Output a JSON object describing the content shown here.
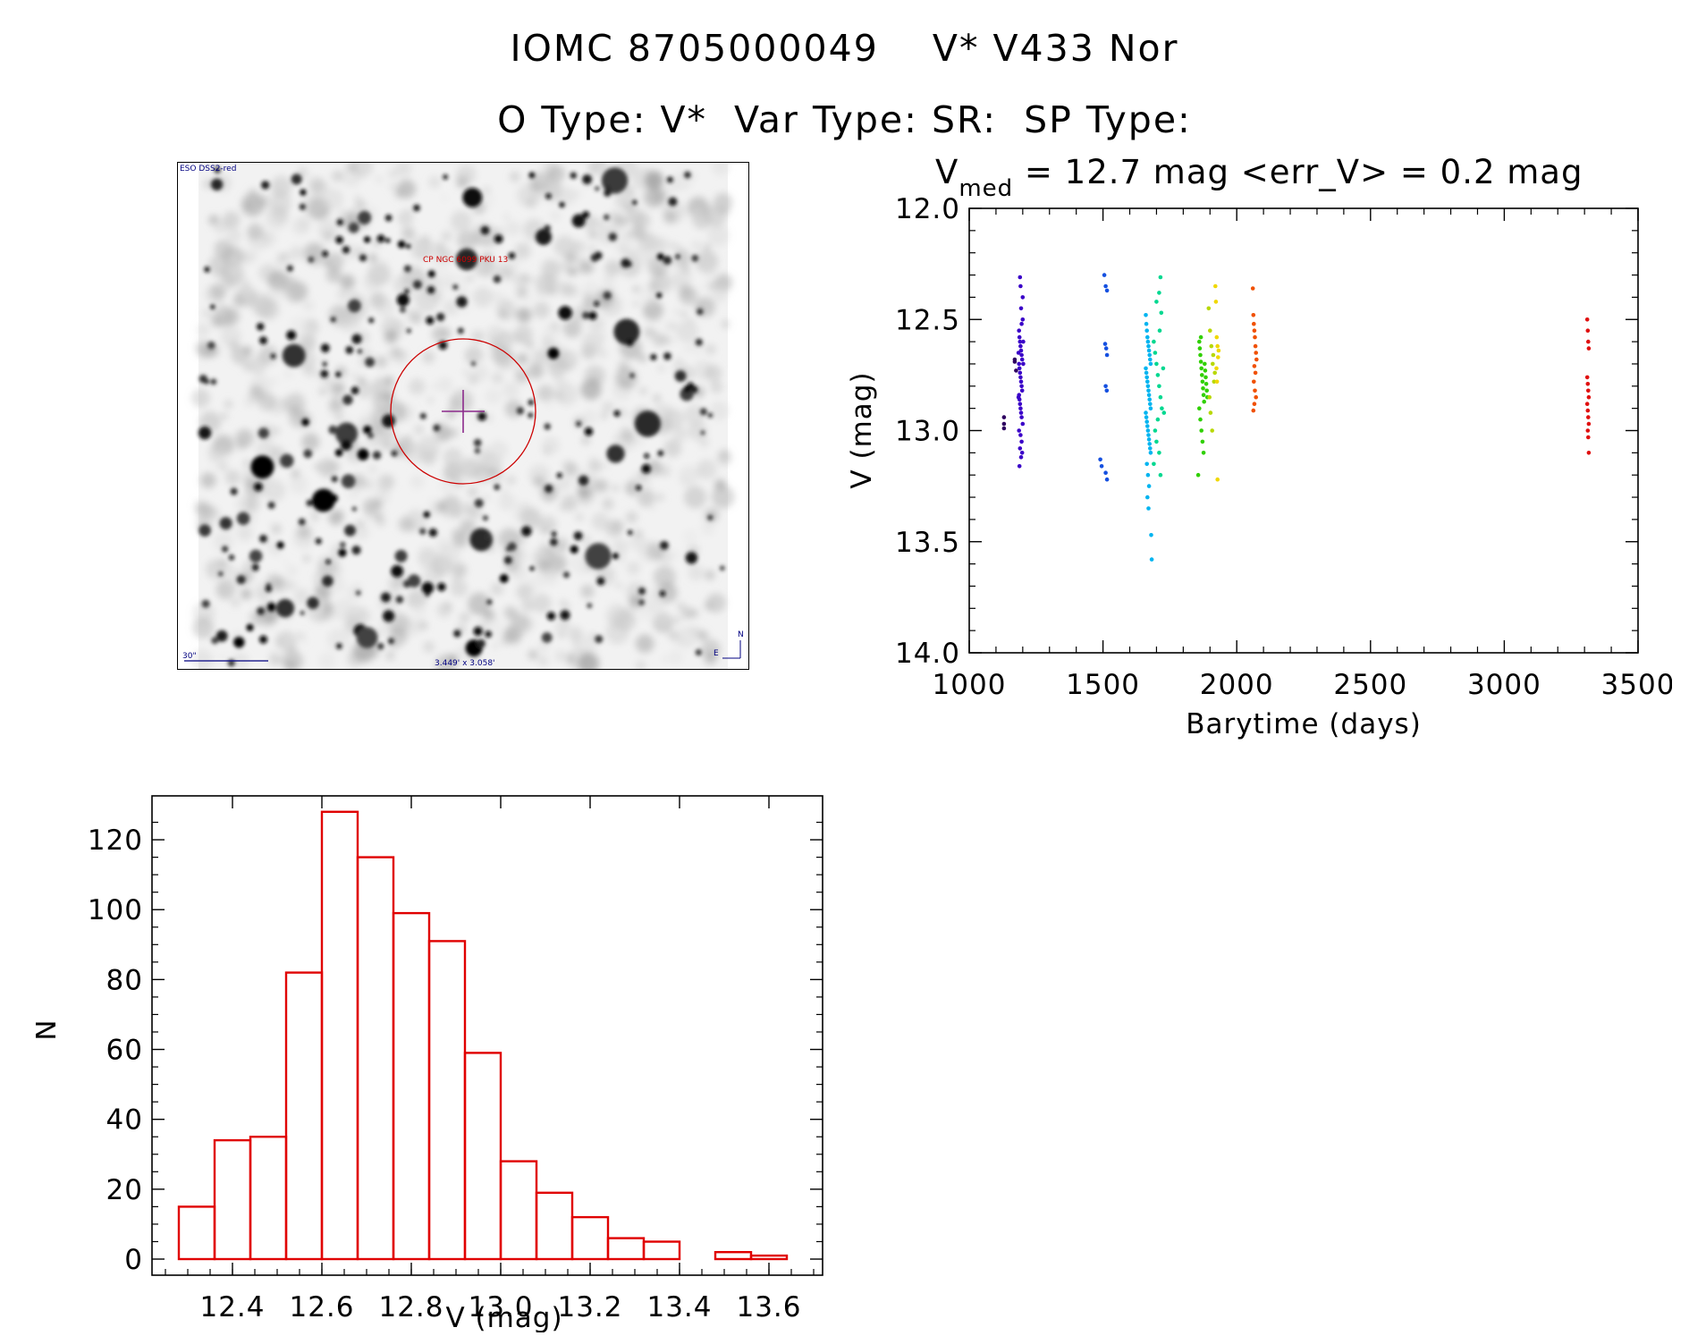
{
  "header": {
    "line1": "IOMC 8705000049    V* V433 Nor",
    "line2": "O Type: V*  Var Type: SR:  SP Type:"
  },
  "image_panel": {
    "survey_label": "ESO DSS2-red",
    "object_label": "CP NGC 6099 PKU 13",
    "scale_label": "30\"",
    "fov_label": "3.449' x 3.058'",
    "north_label": "N",
    "east_label": "E",
    "marker_color": "#cc0000",
    "crosshair_color": "#8b2a8b"
  },
  "chart_data": [
    {
      "type": "scatter",
      "title": {
        "main": "V",
        "sub": "med",
        "rest": " = 12.7 mag <err_V> = 0.2 mag"
      },
      "xlabel": "Barytime (days)",
      "ylabel": "V (mag)",
      "xlim": [
        1000,
        3500
      ],
      "ylim": [
        14.0,
        12.0
      ],
      "y_inverted": true,
      "xticks": [
        "1000",
        "1500",
        "2000",
        "2500",
        "3000",
        "3500"
      ],
      "yticks": [
        "12.0",
        "12.5",
        "13.0",
        "13.5",
        "14.0"
      ],
      "series": [
        {
          "color": "#2e0060",
          "points": [
            [
              1130,
              12.94
            ],
            [
              1130,
              12.97
            ],
            [
              1130,
              12.99
            ],
            [
              1170,
              12.68
            ],
            [
              1170,
              12.69
            ],
            [
              1175,
              12.73
            ]
          ]
        },
        {
          "color": "#3a00c8",
          "points": [
            [
              1190,
              12.31
            ],
            [
              1192,
              12.35
            ],
            [
              1194,
              12.45
            ],
            [
              1196,
              12.52
            ],
            [
              1186,
              12.55
            ],
            [
              1188,
              12.58
            ],
            [
              1190,
              12.6
            ],
            [
              1192,
              12.62
            ],
            [
              1194,
              12.64
            ],
            [
              1196,
              12.66
            ],
            [
              1198,
              12.68
            ],
            [
              1186,
              12.7
            ],
            [
              1188,
              12.72
            ],
            [
              1190,
              12.74
            ],
            [
              1192,
              12.76
            ],
            [
              1194,
              12.78
            ],
            [
              1196,
              12.8
            ],
            [
              1198,
              12.82
            ],
            [
              1186,
              12.84
            ],
            [
              1188,
              12.86
            ],
            [
              1190,
              12.88
            ],
            [
              1192,
              12.9
            ],
            [
              1194,
              12.92
            ],
            [
              1196,
              12.94
            ],
            [
              1192,
              13.02
            ],
            [
              1196,
              13.05
            ],
            [
              1190,
              13.08
            ],
            [
              1198,
              13.1
            ],
            [
              1194,
              13.12
            ],
            [
              1188,
              13.16
            ],
            [
              1200,
              12.4
            ],
            [
              1200,
              12.5
            ],
            [
              1184,
              12.65
            ],
            [
              1202,
              12.7
            ],
            [
              1184,
              12.85
            ],
            [
              1202,
              12.6
            ],
            [
              1200,
              12.97
            ],
            [
              1186,
              13.0
            ]
          ]
        },
        {
          "color": "#1550e0",
          "points": [
            [
              1505,
              12.3
            ],
            [
              1510,
              12.35
            ],
            [
              1515,
              12.37
            ],
            [
              1508,
              12.61
            ],
            [
              1512,
              12.63
            ],
            [
              1515,
              12.66
            ],
            [
              1510,
              12.8
            ],
            [
              1514,
              12.82
            ],
            [
              1490,
              13.13
            ],
            [
              1495,
              13.16
            ],
            [
              1510,
              13.19
            ],
            [
              1515,
              13.22
            ]
          ]
        },
        {
          "color": "#00b4f0",
          "points": [
            [
              1660,
              12.48
            ],
            [
              1662,
              12.52
            ],
            [
              1664,
              12.55
            ],
            [
              1666,
              12.58
            ],
            [
              1668,
              12.6
            ],
            [
              1670,
              12.62
            ],
            [
              1672,
              12.64
            ],
            [
              1674,
              12.66
            ],
            [
              1676,
              12.68
            ],
            [
              1678,
              12.7
            ],
            [
              1660,
              12.72
            ],
            [
              1662,
              12.74
            ],
            [
              1664,
              12.76
            ],
            [
              1666,
              12.78
            ],
            [
              1668,
              12.8
            ],
            [
              1670,
              12.82
            ],
            [
              1672,
              12.84
            ],
            [
              1674,
              12.86
            ],
            [
              1676,
              12.88
            ],
            [
              1678,
              12.9
            ],
            [
              1660,
              12.92
            ],
            [
              1662,
              12.94
            ],
            [
              1664,
              12.96
            ],
            [
              1666,
              12.98
            ],
            [
              1668,
              13.0
            ],
            [
              1670,
              13.02
            ],
            [
              1672,
              13.04
            ],
            [
              1674,
              13.06
            ],
            [
              1676,
              13.08
            ],
            [
              1678,
              13.1
            ],
            [
              1664,
              13.15
            ],
            [
              1668,
              13.2
            ],
            [
              1672,
              13.25
            ],
            [
              1666,
              13.3
            ],
            [
              1670,
              13.35
            ],
            [
              1680,
              13.47
            ],
            [
              1682,
              13.58
            ]
          ]
        },
        {
          "color": "#00d890",
          "points": [
            [
              1690,
              12.6
            ],
            [
              1695,
              12.65
            ],
            [
              1700,
              12.7
            ],
            [
              1705,
              12.75
            ],
            [
              1710,
              12.8
            ],
            [
              1715,
              12.85
            ],
            [
              1720,
              12.9
            ],
            [
              1700,
              12.42
            ],
            [
              1710,
              12.38
            ],
            [
              1715,
              12.31
            ],
            [
              1718,
              12.47
            ],
            [
              1712,
              12.55
            ],
            [
              1705,
              12.95
            ],
            [
              1695,
              13.0
            ],
            [
              1700,
              13.05
            ],
            [
              1710,
              13.1
            ],
            [
              1690,
              13.15
            ],
            [
              1715,
              13.2
            ],
            [
              1725,
              12.72
            ],
            [
              1728,
              12.92
            ]
          ]
        },
        {
          "color": "#30d000",
          "points": [
            [
              1860,
              12.6
            ],
            [
              1862,
              12.63
            ],
            [
              1864,
              12.66
            ],
            [
              1866,
              12.69
            ],
            [
              1868,
              12.72
            ],
            [
              1870,
              12.75
            ],
            [
              1872,
              12.78
            ],
            [
              1874,
              12.81
            ],
            [
              1876,
              12.84
            ],
            [
              1878,
              12.87
            ],
            [
              1880,
              12.7
            ],
            [
              1882,
              12.73
            ],
            [
              1884,
              12.76
            ],
            [
              1886,
              12.79
            ],
            [
              1888,
              12.82
            ],
            [
              1890,
              12.85
            ],
            [
              1860,
              12.9
            ],
            [
              1864,
              12.95
            ],
            [
              1868,
              13.0
            ],
            [
              1872,
              13.05
            ],
            [
              1876,
              13.1
            ],
            [
              1856,
              13.2
            ],
            [
              1866,
              12.58
            ]
          ]
        },
        {
          "color": "#b8d800",
          "points": [
            [
              1895,
              12.45
            ],
            [
              1900,
              12.55
            ],
            [
              1905,
              12.62
            ],
            [
              1910,
              12.7
            ],
            [
              1915,
              12.78
            ],
            [
              1898,
              12.85
            ],
            [
              1902,
              12.92
            ],
            [
              1908,
              13.0
            ],
            [
              1912,
              12.66
            ],
            [
              1918,
              12.74
            ]
          ]
        },
        {
          "color": "#f0d800",
          "points": [
            [
              1920,
              12.35
            ],
            [
              1922,
              12.42
            ],
            [
              1925,
              12.58
            ],
            [
              1928,
              12.62
            ],
            [
              1930,
              12.67
            ],
            [
              1924,
              12.72
            ],
            [
              1926,
              12.78
            ],
            [
              1932,
              12.64
            ],
            [
              1928,
              13.22
            ]
          ]
        },
        {
          "color": "#f05000",
          "points": [
            [
              2060,
              12.36
            ],
            [
              2062,
              12.48
            ],
            [
              2064,
              12.52
            ],
            [
              2066,
              12.55
            ],
            [
              2068,
              12.58
            ],
            [
              2070,
              12.62
            ],
            [
              2072,
              12.65
            ],
            [
              2074,
              12.68
            ],
            [
              2066,
              12.71
            ],
            [
              2070,
              12.74
            ],
            [
              2064,
              12.78
            ],
            [
              2068,
              12.82
            ],
            [
              2072,
              12.85
            ],
            [
              2066,
              12.88
            ],
            [
              2062,
              12.91
            ]
          ]
        },
        {
          "color": "#e01010",
          "points": [
            [
              3310,
              12.5
            ],
            [
              3312,
              12.55
            ],
            [
              3314,
              12.6
            ],
            [
              3316,
              12.63
            ],
            [
              3310,
              12.76
            ],
            [
              3312,
              12.79
            ],
            [
              3314,
              12.82
            ],
            [
              3316,
              12.85
            ],
            [
              3310,
              12.88
            ],
            [
              3312,
              12.91
            ],
            [
              3314,
              12.94
            ],
            [
              3316,
              12.97
            ],
            [
              3312,
              13.0
            ],
            [
              3314,
              13.03
            ],
            [
              3316,
              13.1
            ]
          ]
        }
      ]
    },
    {
      "type": "bar",
      "subtype": "histogram",
      "xlabel": "V (mag)",
      "ylabel": "N",
      "xlim": [
        12.22,
        13.72
      ],
      "ylim": [
        0,
        130
      ],
      "bar_color": "#e00000",
      "xticks": [
        "12.4",
        "12.6",
        "12.8",
        "13.0",
        "13.2",
        "13.4",
        "13.6"
      ],
      "yticks": [
        "0",
        "20",
        "40",
        "60",
        "80",
        "100",
        "120"
      ],
      "bins": [
        {
          "x0": 12.28,
          "x1": 12.36,
          "n": 15
        },
        {
          "x0": 12.36,
          "x1": 12.44,
          "n": 34
        },
        {
          "x0": 12.44,
          "x1": 12.52,
          "n": 35
        },
        {
          "x0": 12.52,
          "x1": 12.6,
          "n": 82
        },
        {
          "x0": 12.6,
          "x1": 12.68,
          "n": 128
        },
        {
          "x0": 12.68,
          "x1": 12.76,
          "n": 115
        },
        {
          "x0": 12.76,
          "x1": 12.84,
          "n": 99
        },
        {
          "x0": 12.84,
          "x1": 12.92,
          "n": 91
        },
        {
          "x0": 12.92,
          "x1": 13.0,
          "n": 59
        },
        {
          "x0": 13.0,
          "x1": 13.08,
          "n": 28
        },
        {
          "x0": 13.08,
          "x1": 13.16,
          "n": 19
        },
        {
          "x0": 13.16,
          "x1": 13.24,
          "n": 12
        },
        {
          "x0": 13.24,
          "x1": 13.32,
          "n": 6
        },
        {
          "x0": 13.32,
          "x1": 13.4,
          "n": 5
        },
        {
          "x0": 13.4,
          "x1": 13.48,
          "n": 0
        },
        {
          "x0": 13.48,
          "x1": 13.56,
          "n": 2
        },
        {
          "x0": 13.56,
          "x1": 13.64,
          "n": 1
        }
      ]
    }
  ]
}
